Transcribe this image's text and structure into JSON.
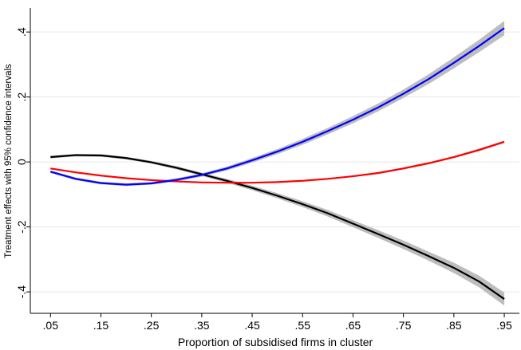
{
  "chart_data": {
    "type": "line",
    "xlabel": "Proportion of subsidised firms in cluster",
    "ylabel": "Treatment effects  with 95% confidence intervals",
    "x": [
      0.05,
      0.1,
      0.15,
      0.2,
      0.25,
      0.3,
      0.35,
      0.4,
      0.45,
      0.5,
      0.55,
      0.6,
      0.65,
      0.7,
      0.75,
      0.8,
      0.85,
      0.9,
      0.95
    ],
    "series": [
      {
        "color": "#000000",
        "band_color": "#bdbdbd",
        "values": [
          0.015,
          0.021,
          0.02,
          0.012,
          -0.001,
          -0.018,
          -0.038,
          -0.058,
          -0.08,
          -0.104,
          -0.13,
          -0.158,
          -0.19,
          -0.222,
          -0.255,
          -0.29,
          -0.326,
          -0.368,
          -0.422
        ],
        "ci": [
          0.004,
          0.004,
          0.004,
          0.004,
          0.004,
          0.005,
          0.005,
          0.006,
          0.007,
          0.008,
          0.009,
          0.01,
          0.011,
          0.012,
          0.013,
          0.014,
          0.016,
          0.018,
          0.02
        ]
      },
      {
        "color": "#ff0000",
        "band_color": "#bdbdbd",
        "values": [
          -0.02,
          -0.032,
          -0.042,
          -0.05,
          -0.056,
          -0.06,
          -0.063,
          -0.064,
          -0.064,
          -0.062,
          -0.058,
          -0.052,
          -0.044,
          -0.034,
          -0.02,
          -0.004,
          0.015,
          0.037,
          0.062
        ],
        "ci": [
          0.002,
          0.002,
          0.002,
          0.002,
          0.002,
          0.002,
          0.002,
          0.002,
          0.002,
          0.002,
          0.002,
          0.002,
          0.002,
          0.003,
          0.003,
          0.003,
          0.003,
          0.004,
          0.004
        ]
      },
      {
        "color": "#0000ff",
        "band_color": "#bdbdbd",
        "values": [
          -0.03,
          -0.052,
          -0.065,
          -0.07,
          -0.066,
          -0.055,
          -0.04,
          -0.02,
          0.005,
          0.032,
          0.062,
          0.095,
          0.13,
          0.168,
          0.21,
          0.255,
          0.305,
          0.357,
          0.412
        ],
        "ci": [
          0.004,
          0.004,
          0.004,
          0.004,
          0.004,
          0.005,
          0.005,
          0.006,
          0.007,
          0.008,
          0.009,
          0.01,
          0.011,
          0.012,
          0.013,
          0.015,
          0.017,
          0.019,
          0.022
        ]
      }
    ],
    "xlim": [
      0.01,
      0.98
    ],
    "ylim": [
      -0.466,
      0.474
    ],
    "xticks": [
      {
        "value": 0.05,
        "label": ".05"
      },
      {
        "value": 0.15,
        "label": ".15"
      },
      {
        "value": 0.25,
        "label": ".25"
      },
      {
        "value": 0.35,
        "label": ".35"
      },
      {
        "value": 0.45,
        "label": ".45"
      },
      {
        "value": 0.55,
        "label": ".55"
      },
      {
        "value": 0.65,
        "label": ".65"
      },
      {
        "value": 0.75,
        "label": ".75"
      },
      {
        "value": 0.85,
        "label": ".85"
      },
      {
        "value": 0.95,
        "label": ".95"
      }
    ],
    "yticks": [
      {
        "value": -0.4,
        "label": "-.4"
      },
      {
        "value": -0.2,
        "label": "-.2"
      },
      0,
      {
        "value": 0.2,
        "label": ".2"
      },
      {
        "value": 0.4,
        "label": ".4"
      }
    ],
    "grid": true
  }
}
